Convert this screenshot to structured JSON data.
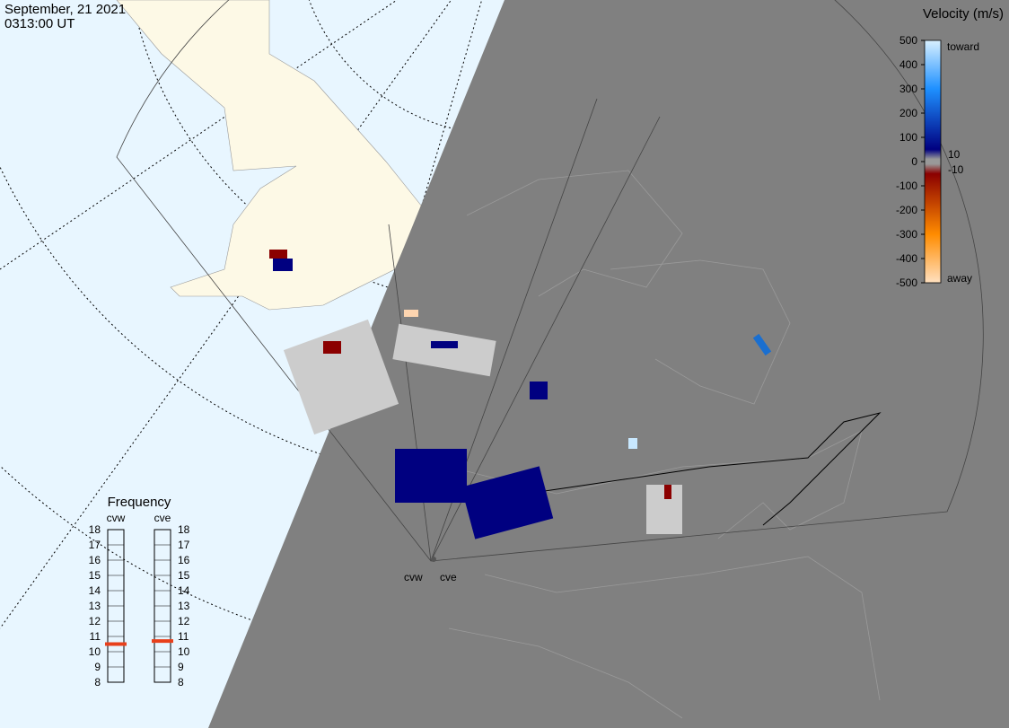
{
  "header": {
    "date": "September, 21 2021",
    "time": "0313:00 UT"
  },
  "velocity_scale": {
    "title": "Velocity (m/s)",
    "lim": [
      -500,
      500
    ],
    "ticks": [
      500,
      400,
      300,
      200,
      100,
      0,
      -100,
      -200,
      -300,
      -400,
      -500
    ],
    "toward": "toward",
    "away": "away",
    "inner_ticks": [
      10,
      -10
    ]
  },
  "frequency": {
    "title": "Frequency",
    "lim": [
      8,
      18
    ],
    "ticks": [
      8,
      9,
      10,
      11,
      12,
      13,
      14,
      15,
      16,
      17,
      18
    ],
    "radars": [
      {
        "name": "cvw",
        "value": 10.5
      },
      {
        "name": "cve",
        "value": 10.7
      }
    ]
  },
  "sites": [
    "cvw",
    "cve"
  ]
}
